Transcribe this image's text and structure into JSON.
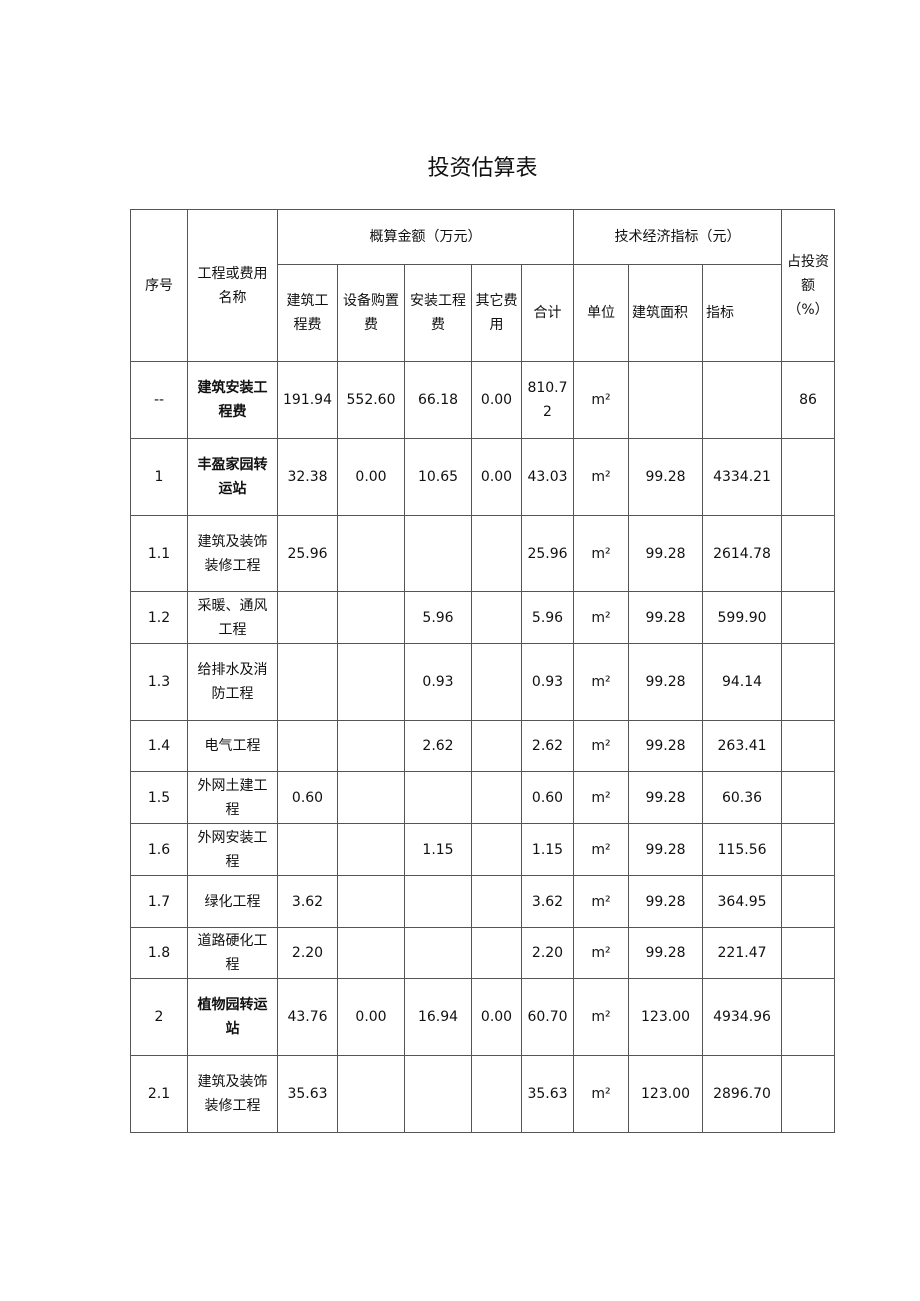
{
  "title": "投资估算表",
  "header": {
    "no": "序号",
    "name": "工程或费用名称",
    "estimate_group": "概算金额（万元）",
    "tech_group": "技术经济指标（元）",
    "share": "占投资额（%）",
    "cols": [
      "建筑工程费",
      "设备购置费",
      "安装工程费",
      "其它费用",
      "合计",
      "单位",
      "建筑面积",
      "指标"
    ]
  },
  "rows": [
    {
      "no": "--",
      "name": "建筑安装工程费",
      "bold": true,
      "v": [
        "191.94",
        "552.60",
        "66.18",
        "0.00",
        "810.72",
        "m²",
        "",
        "",
        "86"
      ]
    },
    {
      "no": "1",
      "name": "丰盈家园转运站",
      "bold": true,
      "v": [
        "32.38",
        "0.00",
        "10.65",
        "0.00",
        "43.03",
        "m²",
        "99.28",
        "4334.21",
        ""
      ]
    },
    {
      "no": "1.1",
      "name": "建筑及装饰装修工程",
      "v": [
        "25.96",
        "",
        "",
        "",
        "25.96",
        "m²",
        "99.28",
        "2614.78",
        ""
      ]
    },
    {
      "no": "1.2",
      "name": "采暖、通风工程",
      "v": [
        "",
        "",
        "5.96",
        "",
        "5.96",
        "m²",
        "99.28",
        "599.90",
        ""
      ]
    },
    {
      "no": "1.3",
      "name": "给排水及消防工程",
      "v": [
        "",
        "",
        "0.93",
        "",
        "0.93",
        "m²",
        "99.28",
        "94.14",
        ""
      ]
    },
    {
      "no": "1.4",
      "name": "电气工程",
      "v": [
        "",
        "",
        "2.62",
        "",
        "2.62",
        "m²",
        "99.28",
        "263.41",
        ""
      ]
    },
    {
      "no": "1.5",
      "name": "外网土建工程",
      "v": [
        "0.60",
        "",
        "",
        "",
        "0.60",
        "m²",
        "99.28",
        "60.36",
        ""
      ]
    },
    {
      "no": "1.6",
      "name": "外网安装工程",
      "v": [
        "",
        "",
        "1.15",
        "",
        "1.15",
        "m²",
        "99.28",
        "115.56",
        ""
      ]
    },
    {
      "no": "1.7",
      "name": "绿化工程",
      "v": [
        "3.62",
        "",
        "",
        "",
        "3.62",
        "m²",
        "99.28",
        "364.95",
        ""
      ]
    },
    {
      "no": "1.8",
      "name": "道路硬化工程",
      "v": [
        "2.20",
        "",
        "",
        "",
        "2.20",
        "m²",
        "99.28",
        "221.47",
        ""
      ]
    },
    {
      "no": "2",
      "name": "植物园转运站",
      "bold": true,
      "v": [
        "43.76",
        "0.00",
        "16.94",
        "0.00",
        "60.70",
        "m²",
        "123.00",
        "4934.96",
        ""
      ]
    },
    {
      "no": "2.1",
      "name": "建筑及装饰装修工程",
      "v": [
        "35.63",
        "",
        "",
        "",
        "35.63",
        "m²",
        "123.00",
        "2896.70",
        ""
      ]
    }
  ]
}
